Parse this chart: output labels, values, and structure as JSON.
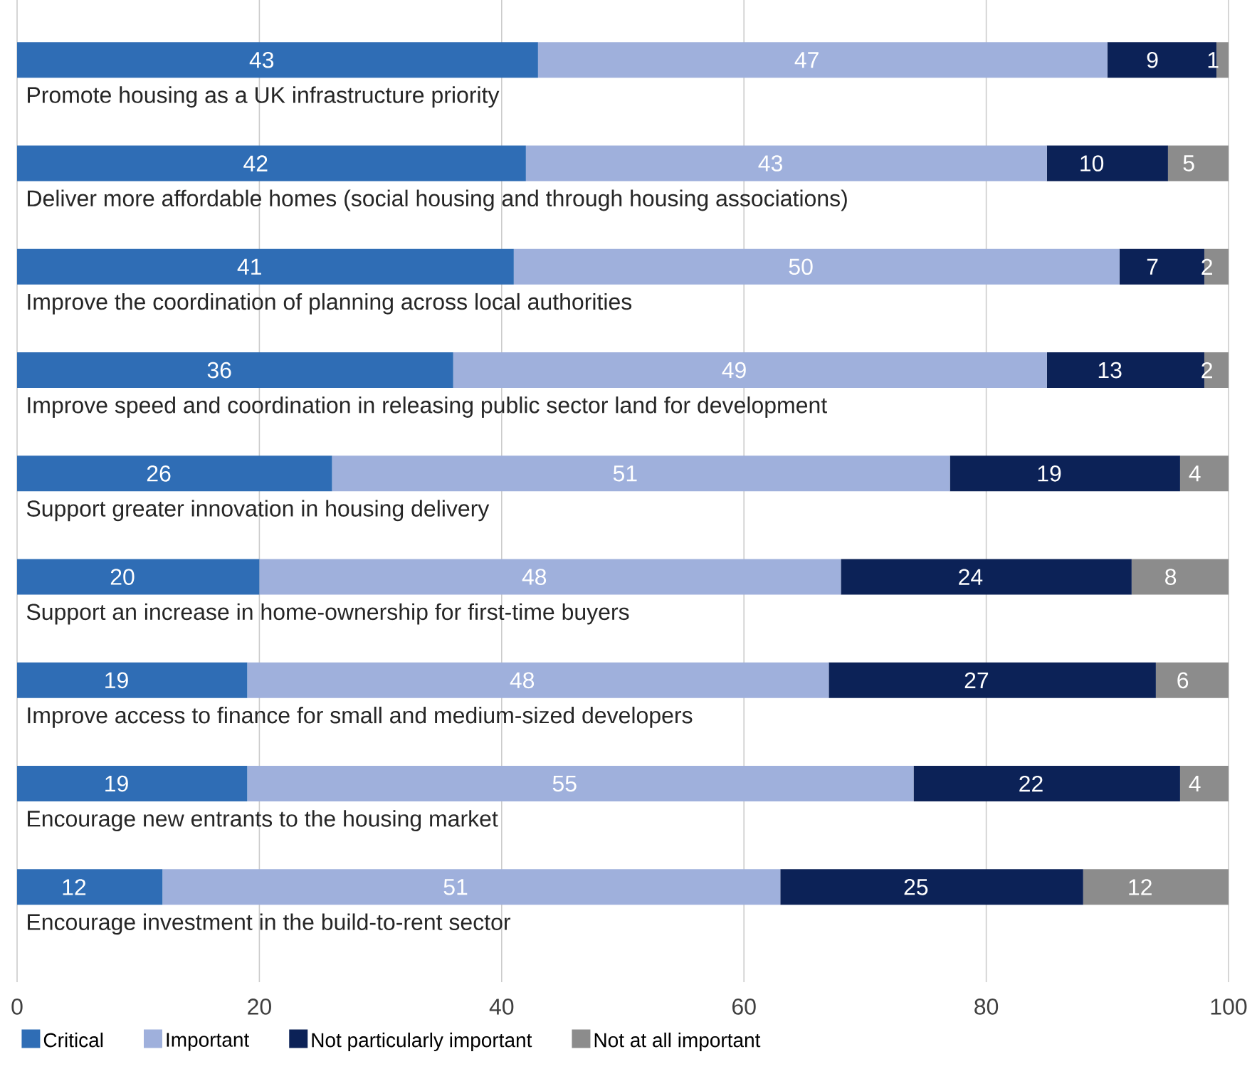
{
  "chart_data": {
    "type": "bar",
    "orientation": "horizontal",
    "stacked": true,
    "categories": [
      "Promote housing as a UK infrastructure priority",
      "Deliver more affordable homes (social housing and through housing associations)",
      "Improve the coordination of planning across local authorities",
      "Improve speed and coordination in releasing public sector land for development",
      "Support greater innovation in housing delivery",
      "Support an increase in home-ownership for first-time buyers",
      "Improve access to finance for small and medium-sized developers",
      "Encourage new entrants to the housing market",
      "Encourage investment in the build-to-rent sector"
    ],
    "series": [
      {
        "name": "Critical",
        "color": "#2f6db5",
        "values": [
          43,
          42,
          41,
          36,
          26,
          20,
          19,
          19,
          12
        ]
      },
      {
        "name": "Important",
        "color": "#9fb0dc",
        "values": [
          47,
          43,
          50,
          49,
          51,
          48,
          48,
          55,
          51
        ]
      },
      {
        "name": "Not particularly important",
        "color": "#0c2257",
        "values": [
          9,
          10,
          7,
          13,
          19,
          24,
          27,
          22,
          25
        ]
      },
      {
        "name": "Not at all important",
        "color": "#8c8c8c",
        "values": [
          1,
          5,
          2,
          2,
          4,
          8,
          6,
          4,
          12
        ]
      }
    ],
    "xlim": [
      0,
      100
    ],
    "xticks": [
      0,
      20,
      40,
      60,
      80,
      100
    ],
    "grid": "x",
    "legend": "bottom left",
    "data_labels": true
  }
}
